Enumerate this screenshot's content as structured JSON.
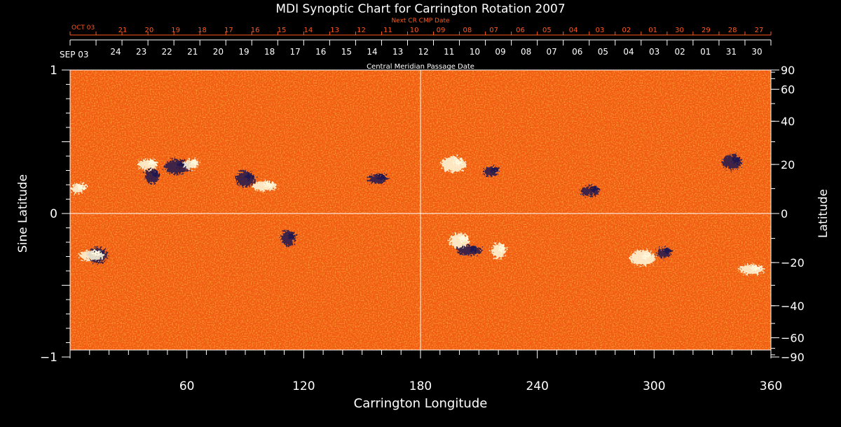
{
  "chart_data": {
    "type": "heatmap",
    "title": "MDI Synoptic Chart for Carrington Rotation 2007",
    "xlabel": "Carrington Longitude",
    "ylabel_left": "Sine Latitude",
    "ylabel_right": "Latitude",
    "xlim": [
      0,
      360
    ],
    "ylim": [
      -1,
      1
    ],
    "x_ticks": [
      "60",
      "120",
      "180",
      "240",
      "300",
      "360"
    ],
    "y_ticks_left": [
      "1",
      "0",
      "−1"
    ],
    "y_ticks_right": [
      "90",
      "60",
      "40",
      "20",
      "0",
      "−20",
      "−40",
      "−60",
      "−90"
    ],
    "top_axis_label": "Central Meridian Passage Date",
    "top_axis_start": "SEP 03",
    "top_axis_dates": [
      "24",
      "23",
      "22",
      "21",
      "20",
      "19",
      "18",
      "17",
      "16",
      "15",
      "14",
      "13",
      "12",
      "11",
      "10",
      "09",
      "08",
      "07",
      "06",
      "05",
      "04",
      "03",
      "02",
      "01",
      "31",
      "30"
    ],
    "next_cr_label": "Next CR CMP Date",
    "next_cr_start": "OCT 03",
    "next_cr_dates": [
      "21",
      "20",
      "19",
      "18",
      "17",
      "16",
      "15",
      "14",
      "13",
      "12",
      "11",
      "10",
      "09",
      "08",
      "07",
      "06",
      "05",
      "04",
      "03",
      "02",
      "01",
      "30",
      "29",
      "28",
      "27"
    ],
    "colors": {
      "background": "#ff5500",
      "positive_polarity": "#fffde0",
      "negative_polarity": "#1e1450",
      "gridline": "#ffffff",
      "date_red": "#ff5a1e"
    },
    "regions": [
      {
        "lon": 4,
        "lat": 10,
        "polarity": "positive"
      },
      {
        "lon": 14,
        "lat": -17,
        "polarity": "negative"
      },
      {
        "lon": 11,
        "lat": -17,
        "polarity": "positive"
      },
      {
        "lon": 42,
        "lat": 15,
        "polarity": "negative"
      },
      {
        "lon": 40,
        "lat": 20,
        "polarity": "positive"
      },
      {
        "lon": 55,
        "lat": 19,
        "polarity": "negative"
      },
      {
        "lon": 62,
        "lat": 20,
        "polarity": "positive"
      },
      {
        "lon": 90,
        "lat": 14,
        "polarity": "negative"
      },
      {
        "lon": 100,
        "lat": 11,
        "polarity": "positive"
      },
      {
        "lon": 112,
        "lat": -10,
        "polarity": "negative"
      },
      {
        "lon": 158,
        "lat": 14,
        "polarity": "negative"
      },
      {
        "lon": 197,
        "lat": 20,
        "polarity": "positive"
      },
      {
        "lon": 216,
        "lat": 17,
        "polarity": "negative"
      },
      {
        "lon": 200,
        "lat": -11,
        "polarity": "positive"
      },
      {
        "lon": 205,
        "lat": -15,
        "polarity": "negative"
      },
      {
        "lon": 220,
        "lat": -15,
        "polarity": "positive"
      },
      {
        "lon": 267,
        "lat": 9,
        "polarity": "negative"
      },
      {
        "lon": 294,
        "lat": -18,
        "polarity": "positive"
      },
      {
        "lon": 305,
        "lat": -16,
        "polarity": "negative"
      },
      {
        "lon": 340,
        "lat": 21,
        "polarity": "negative"
      },
      {
        "lon": 350,
        "lat": -23,
        "polarity": "positive"
      }
    ]
  }
}
